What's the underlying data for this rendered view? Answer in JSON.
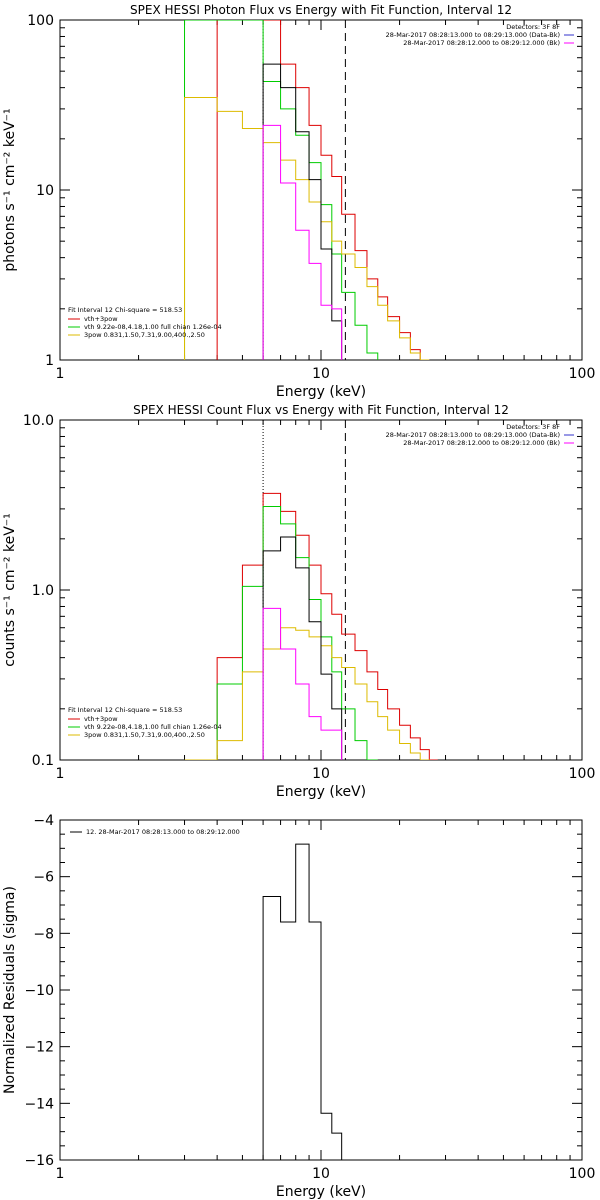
{
  "chart_data": [
    {
      "type": "line",
      "title": "SPEX HESSI Photon Flux vs Energy with Fit Function, Interval 12",
      "xlabel": "Energy (keV)",
      "ylabel": "photons s⁻¹ cm⁻² keV⁻¹",
      "xscale": "log",
      "yscale": "log",
      "xlim": [
        1,
        100
      ],
      "ylim": [
        1,
        100
      ],
      "xticks": [
        {
          "value": 1,
          "label": "1"
        },
        {
          "value": 10,
          "label": "10"
        },
        {
          "value": 100,
          "label": "100"
        }
      ],
      "yticks": [
        {
          "value": 1,
          "label": "1"
        },
        {
          "value": 10,
          "label": "10"
        },
        {
          "value": 100,
          "label": "100"
        }
      ],
      "vlines": [
        {
          "x": 6.0,
          "style": "dotted",
          "color": "#000000"
        },
        {
          "x": 12.4,
          "style": "dashed",
          "color": "#000000"
        }
      ],
      "info_lines": [
        {
          "text": "Detectors: 3F 8F",
          "color": "#000000"
        },
        {
          "text": "28-Mar-2017 08:28:13.000 to 08:29:13.000 (Data-Bk)",
          "color": "#3333cc"
        },
        {
          "text": "28-Mar-2017 08:28:12.000 to 08:29:12.000 (Bk)",
          "color": "#ff00ff"
        }
      ],
      "legend_title": "Fit Interval 12   Chi-square = 518.53",
      "legend": [
        {
          "text": "vth+3pow",
          "color": "#dd0000"
        },
        {
          "text": "vth 9.22e-08,4.18,1.00  full chian 1.26e-04",
          "color": "#00cc00"
        },
        {
          "text": "3pow 0.831,1.50,7.31,9.00,400.,2.50",
          "color": "#ddbb00"
        }
      ],
      "series": [
        {
          "name": "vth+3pow",
          "color": "#dd0000",
          "edges": [
            4,
            5,
            6,
            7,
            8,
            9,
            10,
            11,
            12,
            13.5,
            15,
            16.5,
            18,
            20,
            22,
            24,
            26
          ],
          "values": [
            100,
            100,
            100,
            55,
            40,
            24,
            16,
            12,
            7.2,
            4.4,
            3.0,
            2.35,
            1.8,
            1.45,
            1.15,
            1.0
          ]
        },
        {
          "name": "vth 9.22e-08,4.18,1.00  full chian 1.26e-04",
          "color": "#00cc00",
          "edges": [
            3,
            4,
            5,
            6,
            7,
            8,
            9,
            10,
            11,
            12,
            13.5,
            15,
            16.5
          ],
          "values": [
            100,
            100,
            100,
            43.5,
            30,
            21,
            14.5,
            8.2,
            4.2,
            2.5,
            1.6,
            1.1
          ]
        },
        {
          "name": "3pow 0.831,1.50,7.31,9.00,400.,2.50",
          "color": "#ddbb00",
          "edges": [
            3,
            4,
            5,
            6,
            7,
            8,
            9,
            10,
            11,
            12,
            13.5,
            15,
            16.5,
            18,
            20,
            22,
            24,
            26
          ],
          "values": [
            35,
            29,
            23,
            19,
            15,
            11.5,
            8.5,
            6.5,
            5.0,
            4.2,
            3.5,
            2.7,
            2.1,
            1.7,
            1.35,
            1.1,
            1.0
          ]
        },
        {
          "name": "",
          "color": "#000000",
          "edges": [
            6,
            7,
            8,
            9,
            10,
            11,
            12
          ],
          "values": [
            55,
            40,
            22,
            11.5,
            4.5,
            1.7
          ]
        },
        {
          "name": "",
          "color": "#ff00ff",
          "edges": [
            6,
            7,
            8,
            9,
            10,
            11,
            12
          ],
          "values": [
            24,
            11,
            5.8,
            3.7,
            2.1,
            2.0
          ]
        }
      ]
    },
    {
      "type": "line",
      "title": "SPEX HESSI Count Flux vs Energy with Fit Function, Interval 12",
      "xlabel": "Energy (keV)",
      "ylabel": "counts s⁻¹ cm⁻² keV⁻¹",
      "xscale": "log",
      "yscale": "log",
      "xlim": [
        1,
        100
      ],
      "ylim": [
        0.1,
        10
      ],
      "xticks": [
        {
          "value": 1,
          "label": "1"
        },
        {
          "value": 10,
          "label": "10"
        },
        {
          "value": 100,
          "label": "100"
        }
      ],
      "yticks": [
        {
          "value": 0.1,
          "label": "0.1"
        },
        {
          "value": 1,
          "label": "1.0"
        },
        {
          "value": 10,
          "label": "10.0"
        }
      ],
      "vlines": [
        {
          "x": 6.0,
          "style": "dotted",
          "color": "#000000"
        },
        {
          "x": 12.4,
          "style": "dashed",
          "color": "#000000"
        }
      ],
      "info_lines": [
        {
          "text": "Detectors: 3F 8F",
          "color": "#000000"
        },
        {
          "text": "28-Mar-2017 08:28:13.000 to 08:29:13.000 (Data-Bk)",
          "color": "#3333cc"
        },
        {
          "text": "28-Mar-2017 08:28:12.000 to 08:29:12.000 (Bk)",
          "color": "#ff00ff"
        }
      ],
      "legend_title": "Fit Interval 12   Chi-square = 518.53",
      "legend": [
        {
          "text": "vth+3pow",
          "color": "#dd0000"
        },
        {
          "text": "vth 9.22e-08,4.18,1.00  full chian 1.26e-04",
          "color": "#00cc00"
        },
        {
          "text": "3pow 0.831,1.50,7.31,9.00,400.,2.50",
          "color": "#ddbb00"
        }
      ],
      "series": [
        {
          "name": "vth+3pow",
          "color": "#dd0000",
          "edges": [
            4,
            5,
            6,
            7,
            8,
            9,
            10,
            11,
            12,
            13.5,
            15,
            16.5,
            18,
            20,
            22,
            24,
            26,
            28
          ],
          "values": [
            0.4,
            1.4,
            3.7,
            2.9,
            2.1,
            1.4,
            0.95,
            0.72,
            0.55,
            0.44,
            0.33,
            0.26,
            0.2,
            0.16,
            0.135,
            0.115,
            0.1
          ]
        },
        {
          "name": "vth 9.22e-08,4.18,1.00  full chian 1.26e-04",
          "color": "#00cc00",
          "edges": [
            4,
            5,
            6,
            7,
            8,
            9,
            10,
            11,
            12,
            13.5,
            15,
            16.5
          ],
          "values": [
            0.28,
            1.05,
            3.1,
            2.45,
            1.55,
            0.88,
            0.53,
            0.33,
            0.2,
            0.13,
            0.1
          ]
        },
        {
          "name": "3pow 0.831,1.50,7.31,9.00,400.,2.50",
          "color": "#ddbb00",
          "edges": [
            3,
            4,
            5,
            6,
            7,
            8,
            9,
            10,
            11,
            12,
            13.5,
            15,
            16.5,
            18,
            20,
            22,
            24,
            26,
            28
          ],
          "values": [
            0.1,
            0.13,
            0.33,
            0.45,
            0.6,
            0.58,
            0.53,
            0.47,
            0.4,
            0.35,
            0.28,
            0.22,
            0.18,
            0.15,
            0.125,
            0.11,
            0.1,
            0.09
          ]
        },
        {
          "name": "",
          "color": "#000000",
          "edges": [
            6,
            7,
            8,
            9,
            10,
            11,
            12
          ],
          "values": [
            1.7,
            2.05,
            1.35,
            0.65,
            0.32,
            0.2
          ]
        },
        {
          "name": "",
          "color": "#ff00ff",
          "edges": [
            6,
            7,
            8,
            9,
            10,
            11,
            12
          ],
          "values": [
            0.78,
            0.45,
            0.28,
            0.18,
            0.15,
            0.15
          ]
        }
      ]
    },
    {
      "type": "line",
      "title": "",
      "xlabel": "Energy (keV)",
      "ylabel": "Normalized Residuals (sigma)",
      "xscale": "log",
      "yscale": "linear",
      "xlim": [
        1,
        100
      ],
      "ylim": [
        -16,
        -4
      ],
      "xticks": [
        {
          "value": 1,
          "label": "1"
        },
        {
          "value": 10,
          "label": "10"
        },
        {
          "value": 100,
          "label": "100"
        }
      ],
      "yticks": [
        {
          "value": -16,
          "label": "−16"
        },
        {
          "value": -14,
          "label": "−14"
        },
        {
          "value": -12,
          "label": "−12"
        },
        {
          "value": -10,
          "label": "−10"
        },
        {
          "value": -8,
          "label": "−8"
        },
        {
          "value": -6,
          "label": "−6"
        },
        {
          "value": -4,
          "label": "−4"
        }
      ],
      "vlines": [],
      "info_lines": [],
      "legend_title": "",
      "legend": [
        {
          "text": "12. 28-Mar-2017 08:28:13.000 to 08:29:12.000",
          "color": "#000000"
        }
      ],
      "series": [
        {
          "name": "12. 28-Mar-2017 08:28:13.000 to 08:29:12.000",
          "color": "#000000",
          "edges": [
            6,
            7,
            8,
            9,
            10,
            11,
            12
          ],
          "values": [
            -6.7,
            -7.6,
            -4.85,
            -7.6,
            -14.35,
            -15.05
          ]
        }
      ]
    }
  ]
}
